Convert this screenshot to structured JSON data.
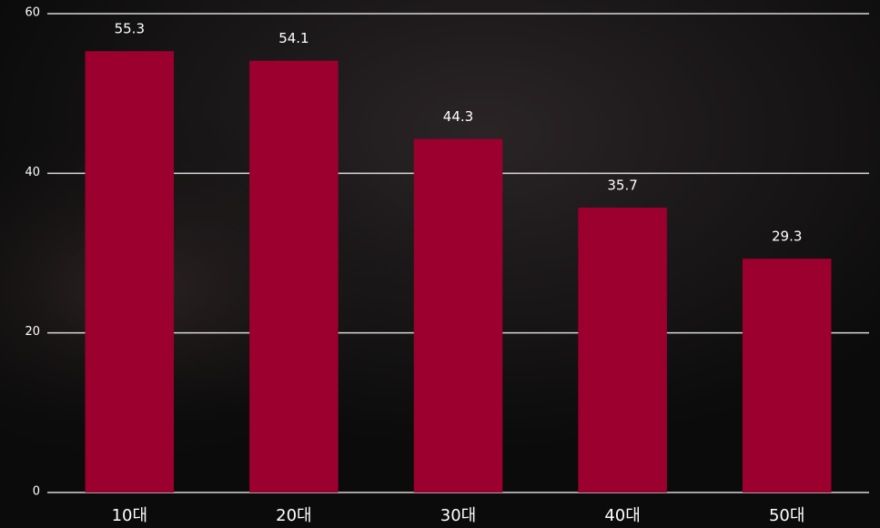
{
  "chart_data": {
    "type": "bar",
    "categories": [
      "10대",
      "20대",
      "30대",
      "40대",
      "50대"
    ],
    "values": [
      55.3,
      54.1,
      44.3,
      35.7,
      29.3
    ],
    "color": "#9c002f",
    "ylim": [
      0,
      60
    ],
    "yticks": [
      0,
      20,
      40,
      60
    ],
    "grid": true
  }
}
